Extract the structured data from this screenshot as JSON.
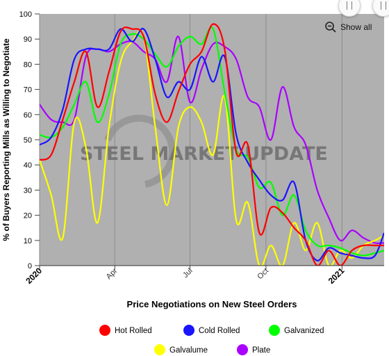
{
  "chart_data": {
    "type": "line",
    "xlabel": "Price Negotiations on New Steel Orders",
    "ylabel": "% of Buyers Reporting Mills as Willing to Negotiate",
    "ylim": [
      0,
      100
    ],
    "yticks": [
      0,
      10,
      20,
      30,
      40,
      50,
      60,
      70,
      80,
      90,
      100
    ],
    "xlim": [
      "2020-01-01",
      "2021-02-21"
    ],
    "xticks": [
      {
        "date": "2020-01-01",
        "label": "2020",
        "bold": true
      },
      {
        "date": "2020-04-01",
        "label": "Apr",
        "bold": false
      },
      {
        "date": "2020-07-01",
        "label": "Jul",
        "bold": false
      },
      {
        "date": "2020-10-01",
        "label": "Oct",
        "bold": false
      },
      {
        "date": "2021-01-01",
        "label": "2021",
        "bold": true
      }
    ],
    "grid": "vertical",
    "legend_position": "bottom",
    "series": [
      {
        "name": "Hot Rolled",
        "color": "#ff0000",
        "x": [
          "2020-01-01",
          "2020-01-15",
          "2020-01-29",
          "2020-02-12",
          "2020-02-26",
          "2020-03-11",
          "2020-03-25",
          "2020-04-08",
          "2020-04-22",
          "2020-05-06",
          "2020-05-20",
          "2020-06-03",
          "2020-06-17",
          "2020-07-01",
          "2020-07-15",
          "2020-07-29",
          "2020-08-12",
          "2020-08-26",
          "2020-09-09",
          "2020-09-23",
          "2020-10-07",
          "2020-10-21",
          "2020-11-04",
          "2020-11-18",
          "2020-12-02",
          "2020-12-16",
          "2020-12-30",
          "2021-01-13",
          "2021-01-27",
          "2021-02-10",
          "2021-02-21"
        ],
        "values": [
          42,
          44,
          58,
          73,
          85,
          63,
          77,
          93,
          94,
          91,
          68,
          57,
          69,
          80,
          85,
          96,
          86,
          45,
          48,
          13,
          23,
          21,
          15,
          10,
          0,
          6,
          0,
          6,
          8,
          8,
          8
        ]
      },
      {
        "name": "Cold Rolled",
        "color": "#1a14ff",
        "x": [
          "2020-01-01",
          "2020-01-15",
          "2020-01-29",
          "2020-02-12",
          "2020-02-26",
          "2020-03-11",
          "2020-03-25",
          "2020-04-08",
          "2020-04-22",
          "2020-05-06",
          "2020-05-20",
          "2020-06-03",
          "2020-06-17",
          "2020-07-01",
          "2020-07-15",
          "2020-07-29",
          "2020-08-12",
          "2020-08-26",
          "2020-09-09",
          "2020-09-23",
          "2020-10-07",
          "2020-10-21",
          "2020-11-04",
          "2020-11-18",
          "2020-12-02",
          "2020-12-16",
          "2020-12-30",
          "2021-01-13",
          "2021-01-27",
          "2021-02-10",
          "2021-02-21"
        ],
        "values": [
          48,
          51,
          62,
          82,
          86,
          86,
          86,
          94,
          89,
          94,
          82,
          67,
          73,
          70,
          83,
          73,
          83,
          52,
          41,
          34,
          28,
          26,
          33,
          10,
          2,
          7,
          5,
          4,
          3,
          4,
          13
        ]
      },
      {
        "name": "Galvanized",
        "color": "#00ff00",
        "x": [
          "2020-01-01",
          "2020-01-15",
          "2020-01-29",
          "2020-02-12",
          "2020-02-26",
          "2020-03-11",
          "2020-03-25",
          "2020-04-08",
          "2020-04-22",
          "2020-05-06",
          "2020-05-20",
          "2020-06-03",
          "2020-06-17",
          "2020-07-01",
          "2020-07-15",
          "2020-07-29",
          "2020-08-12",
          "2020-08-26",
          "2020-09-09",
          "2020-09-23",
          "2020-10-07",
          "2020-10-21",
          "2020-11-04",
          "2020-11-18",
          "2020-12-02",
          "2020-12-16",
          "2020-12-30",
          "2021-01-13",
          "2021-01-27",
          "2021-02-10",
          "2021-02-21"
        ],
        "values": [
          52,
          51,
          55,
          64,
          73,
          57,
          68,
          88,
          92,
          90,
          84,
          79,
          87,
          91,
          88,
          94,
          69,
          46,
          43,
          31,
          33,
          20,
          28,
          14,
          8,
          8,
          7,
          5,
          4,
          5,
          6
        ]
      },
      {
        "name": "Galvalume",
        "color": "#ffff00",
        "x": [
          "2020-01-01",
          "2020-01-15",
          "2020-01-29",
          "2020-02-12",
          "2020-02-26",
          "2020-03-11",
          "2020-03-25",
          "2020-04-08",
          "2020-04-22",
          "2020-05-06",
          "2020-05-20",
          "2020-06-03",
          "2020-06-17",
          "2020-07-01",
          "2020-07-15",
          "2020-07-29",
          "2020-08-12",
          "2020-08-26",
          "2020-09-09",
          "2020-09-23",
          "2020-10-07",
          "2020-10-21",
          "2020-11-04",
          "2020-11-18",
          "2020-12-02",
          "2020-12-16",
          "2020-12-30",
          "2021-01-13",
          "2021-01-27",
          "2021-02-10",
          "2021-02-21"
        ],
        "values": [
          42,
          28,
          11,
          57,
          47,
          17,
          55,
          81,
          89,
          91,
          55,
          24,
          55,
          63,
          57,
          44,
          67,
          18,
          25,
          0,
          8,
          0,
          17,
          6,
          17,
          0,
          6,
          3,
          8,
          10,
          12
        ]
      },
      {
        "name": "Plate",
        "color": "#aa00ff",
        "x": [
          "2020-01-01",
          "2020-01-15",
          "2020-01-29",
          "2020-02-12",
          "2020-02-26",
          "2020-03-11",
          "2020-03-25",
          "2020-04-08",
          "2020-04-22",
          "2020-05-06",
          "2020-05-20",
          "2020-06-03",
          "2020-06-17",
          "2020-07-01",
          "2020-07-15",
          "2020-07-29",
          "2020-08-12",
          "2020-08-26",
          "2020-09-09",
          "2020-09-23",
          "2020-10-07",
          "2020-10-21",
          "2020-11-04",
          "2020-11-18",
          "2020-12-02",
          "2020-12-16",
          "2020-12-30",
          "2021-01-13",
          "2021-01-27",
          "2021-02-10",
          "2021-02-21"
        ],
        "values": [
          64,
          58,
          57,
          58,
          83,
          86,
          85,
          88,
          89,
          85,
          82,
          73,
          91,
          65,
          78,
          88,
          87,
          82,
          67,
          63,
          50,
          71,
          55,
          48,
          30,
          19,
          10,
          14,
          11,
          9,
          9
        ]
      }
    ]
  },
  "watermark": "STEEL MARKET UPDATE",
  "controls": {
    "show_all_label": "Show all"
  }
}
